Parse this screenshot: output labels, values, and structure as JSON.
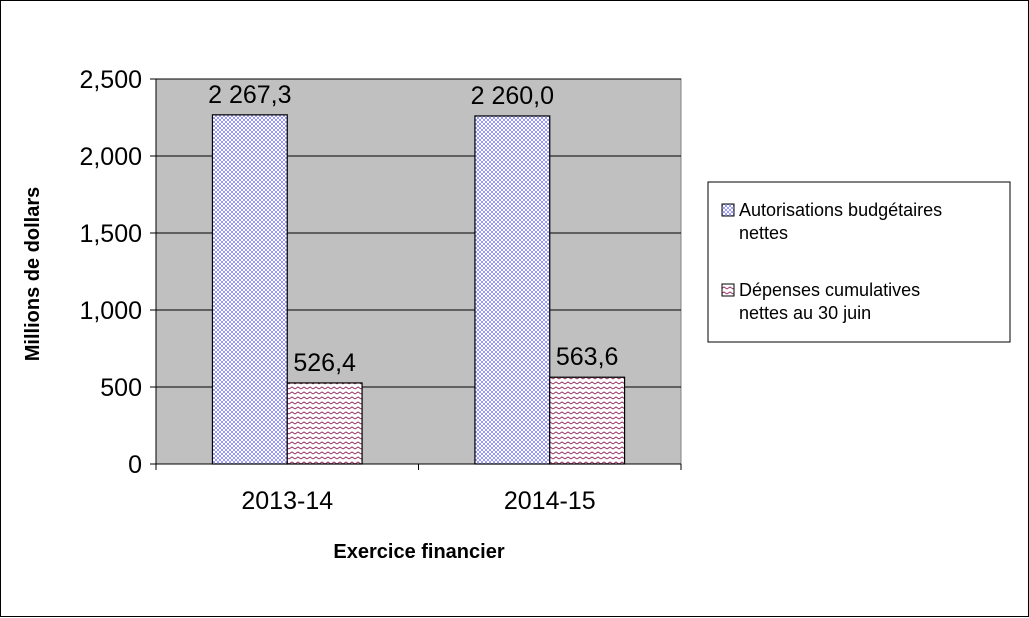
{
  "chart_data": {
    "type": "bar",
    "categories": [
      "2013-14",
      "2014-15"
    ],
    "series": [
      {
        "name": "Autorisations budgétaires nettes",
        "legend_lines": [
          "Autorisations budgétaires",
          "nettes"
        ],
        "values": [
          2267.3,
          2260.0
        ],
        "labels": [
          "2 267,3",
          "2 260,0"
        ],
        "color": "#9999ff",
        "pattern": "dots"
      },
      {
        "name": "Dépenses cumulatives nettes au 30 juin",
        "legend_lines": [
          "Dépenses cumulatives",
          "nettes au 30 juin"
        ],
        "values": [
          526.4,
          563.6
        ],
        "labels": [
          "526,4",
          "563,6"
        ],
        "color": "#993366",
        "pattern": "zigzag"
      }
    ],
    "xlabel": "Exercice financier",
    "ylabel": "Millions de dollars",
    "ylim": [
      0,
      2500
    ],
    "yticks": [
      0,
      500,
      1000,
      1500,
      2000,
      2500
    ],
    "ytick_labels": [
      "0",
      "500",
      "1,000",
      "1,500",
      "2,000",
      "2,500"
    ],
    "plot_background": "#c0c0c0",
    "grid": true,
    "legend_position": "right"
  }
}
